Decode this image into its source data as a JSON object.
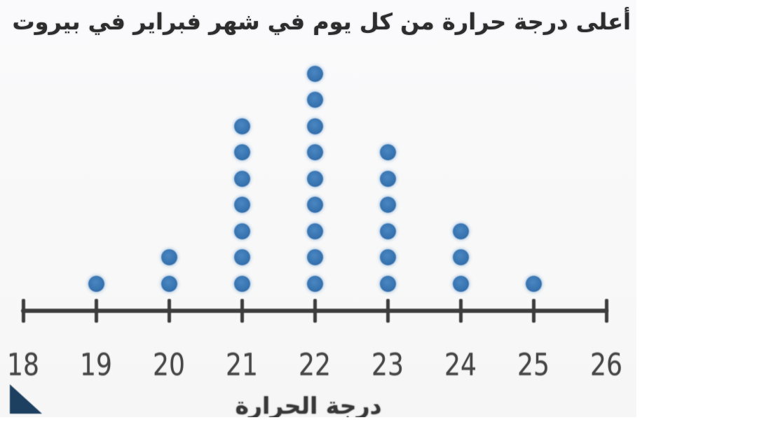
{
  "title": "أعلى درجة حرارة من كل يوم في شهر فبراير في بيروت",
  "axis_label_bottom": "درجة الحرارة",
  "colors": {
    "dot_blue": "#3874b0",
    "axis_gray": "#3d3d3d",
    "text_dark": "#2d2d2d",
    "corner_navy": "#1d4060",
    "page_background": "#f8f8f8"
  },
  "chart_data": {
    "type": "scatter",
    "subtype": "dot_plot",
    "title": "أعلى درجة حرارة من كل يوم في شهر فبراير في بيروت",
    "xlabel": "درجة الحرارة",
    "ylabel": "",
    "categories": [
      18,
      19,
      20,
      21,
      22,
      23,
      24,
      25,
      26
    ],
    "values": [
      0,
      1,
      2,
      7,
      9,
      6,
      3,
      1,
      0
    ],
    "xlim": [
      18,
      26
    ],
    "ylim": [
      0,
      9
    ],
    "total_observations": 29,
    "grid": false,
    "legend": false,
    "notes": "Number-line dot plot; each dot is one February day in Beirut; bottom axis label is partially clipped by the image edge; small navy folded-corner triangle at bottom-left"
  }
}
